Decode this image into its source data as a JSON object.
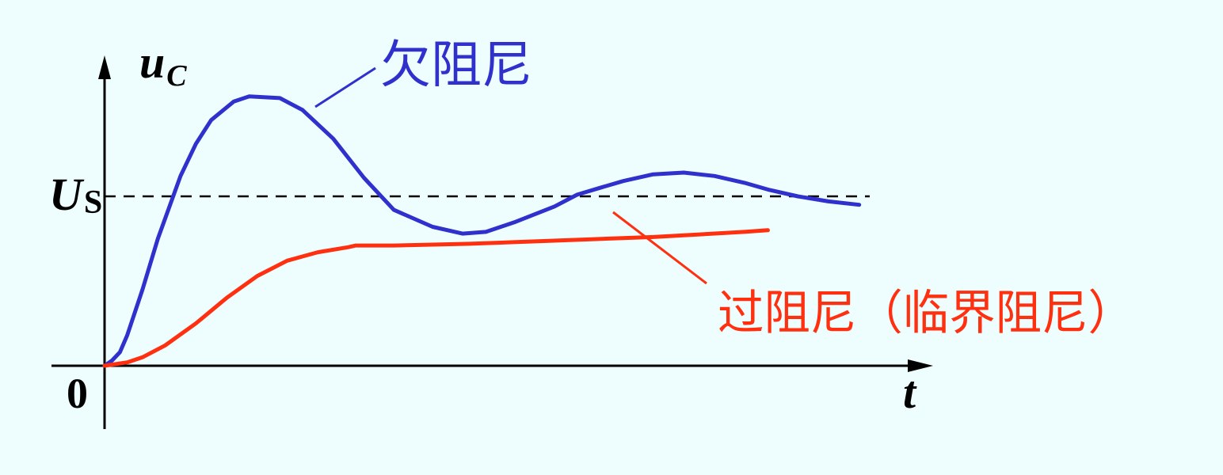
{
  "chart_data": {
    "type": "line",
    "title": "",
    "xlabel": "t",
    "ylabel": "u",
    "ylabel_sub": "C",
    "origin_label": "0",
    "reference": {
      "label": "U",
      "label_sub": "S",
      "y": 1.0,
      "style": "dashed"
    },
    "xlim": [
      0,
      10
    ],
    "ylim": [
      0,
      1.72
    ],
    "grid": false,
    "legend": "none",
    "series": [
      {
        "name": "欠阻尼",
        "color": "#3030cc",
        "x": [
          0.0,
          0.09,
          0.19,
          0.28,
          0.47,
          0.66,
          0.94,
          1.13,
          1.32,
          1.6,
          1.79,
          2.17,
          2.45,
          2.83,
          3.21,
          3.58,
          4.06,
          4.43,
          4.72,
          5.09,
          5.57,
          5.85,
          6.13,
          6.42,
          6.79,
          7.17,
          7.55,
          7.92,
          8.21,
          8.58,
          8.96,
          9.34
        ],
        "y": [
          0.0,
          0.03,
          0.08,
          0.18,
          0.45,
          0.75,
          1.12,
          1.31,
          1.45,
          1.56,
          1.59,
          1.58,
          1.51,
          1.34,
          1.11,
          0.92,
          0.82,
          0.78,
          0.79,
          0.85,
          0.94,
          1.01,
          1.05,
          1.09,
          1.13,
          1.14,
          1.12,
          1.08,
          1.04,
          1.0,
          0.97,
          0.95
        ]
      },
      {
        "name": "过阻尼（临界阻尼）",
        "color": "#ff3010",
        "x": [
          0.0,
          0.28,
          0.47,
          0.75,
          1.13,
          1.51,
          1.89,
          2.26,
          2.64,
          3.02,
          3.11,
          3.58,
          4.53,
          5.66,
          6.79,
          7.92,
          8.21
        ],
        "y": [
          0.0,
          0.02,
          0.05,
          0.12,
          0.25,
          0.4,
          0.53,
          0.62,
          0.67,
          0.7,
          0.71,
          0.71,
          0.72,
          0.74,
          0.76,
          0.79,
          0.8
        ]
      }
    ],
    "annotations": [
      {
        "text": "欠阻尼",
        "series": 0,
        "color": "#3030cc"
      },
      {
        "text": "过阻尼（临界阻尼）",
        "series": 1,
        "color": "#ff3010"
      }
    ]
  }
}
